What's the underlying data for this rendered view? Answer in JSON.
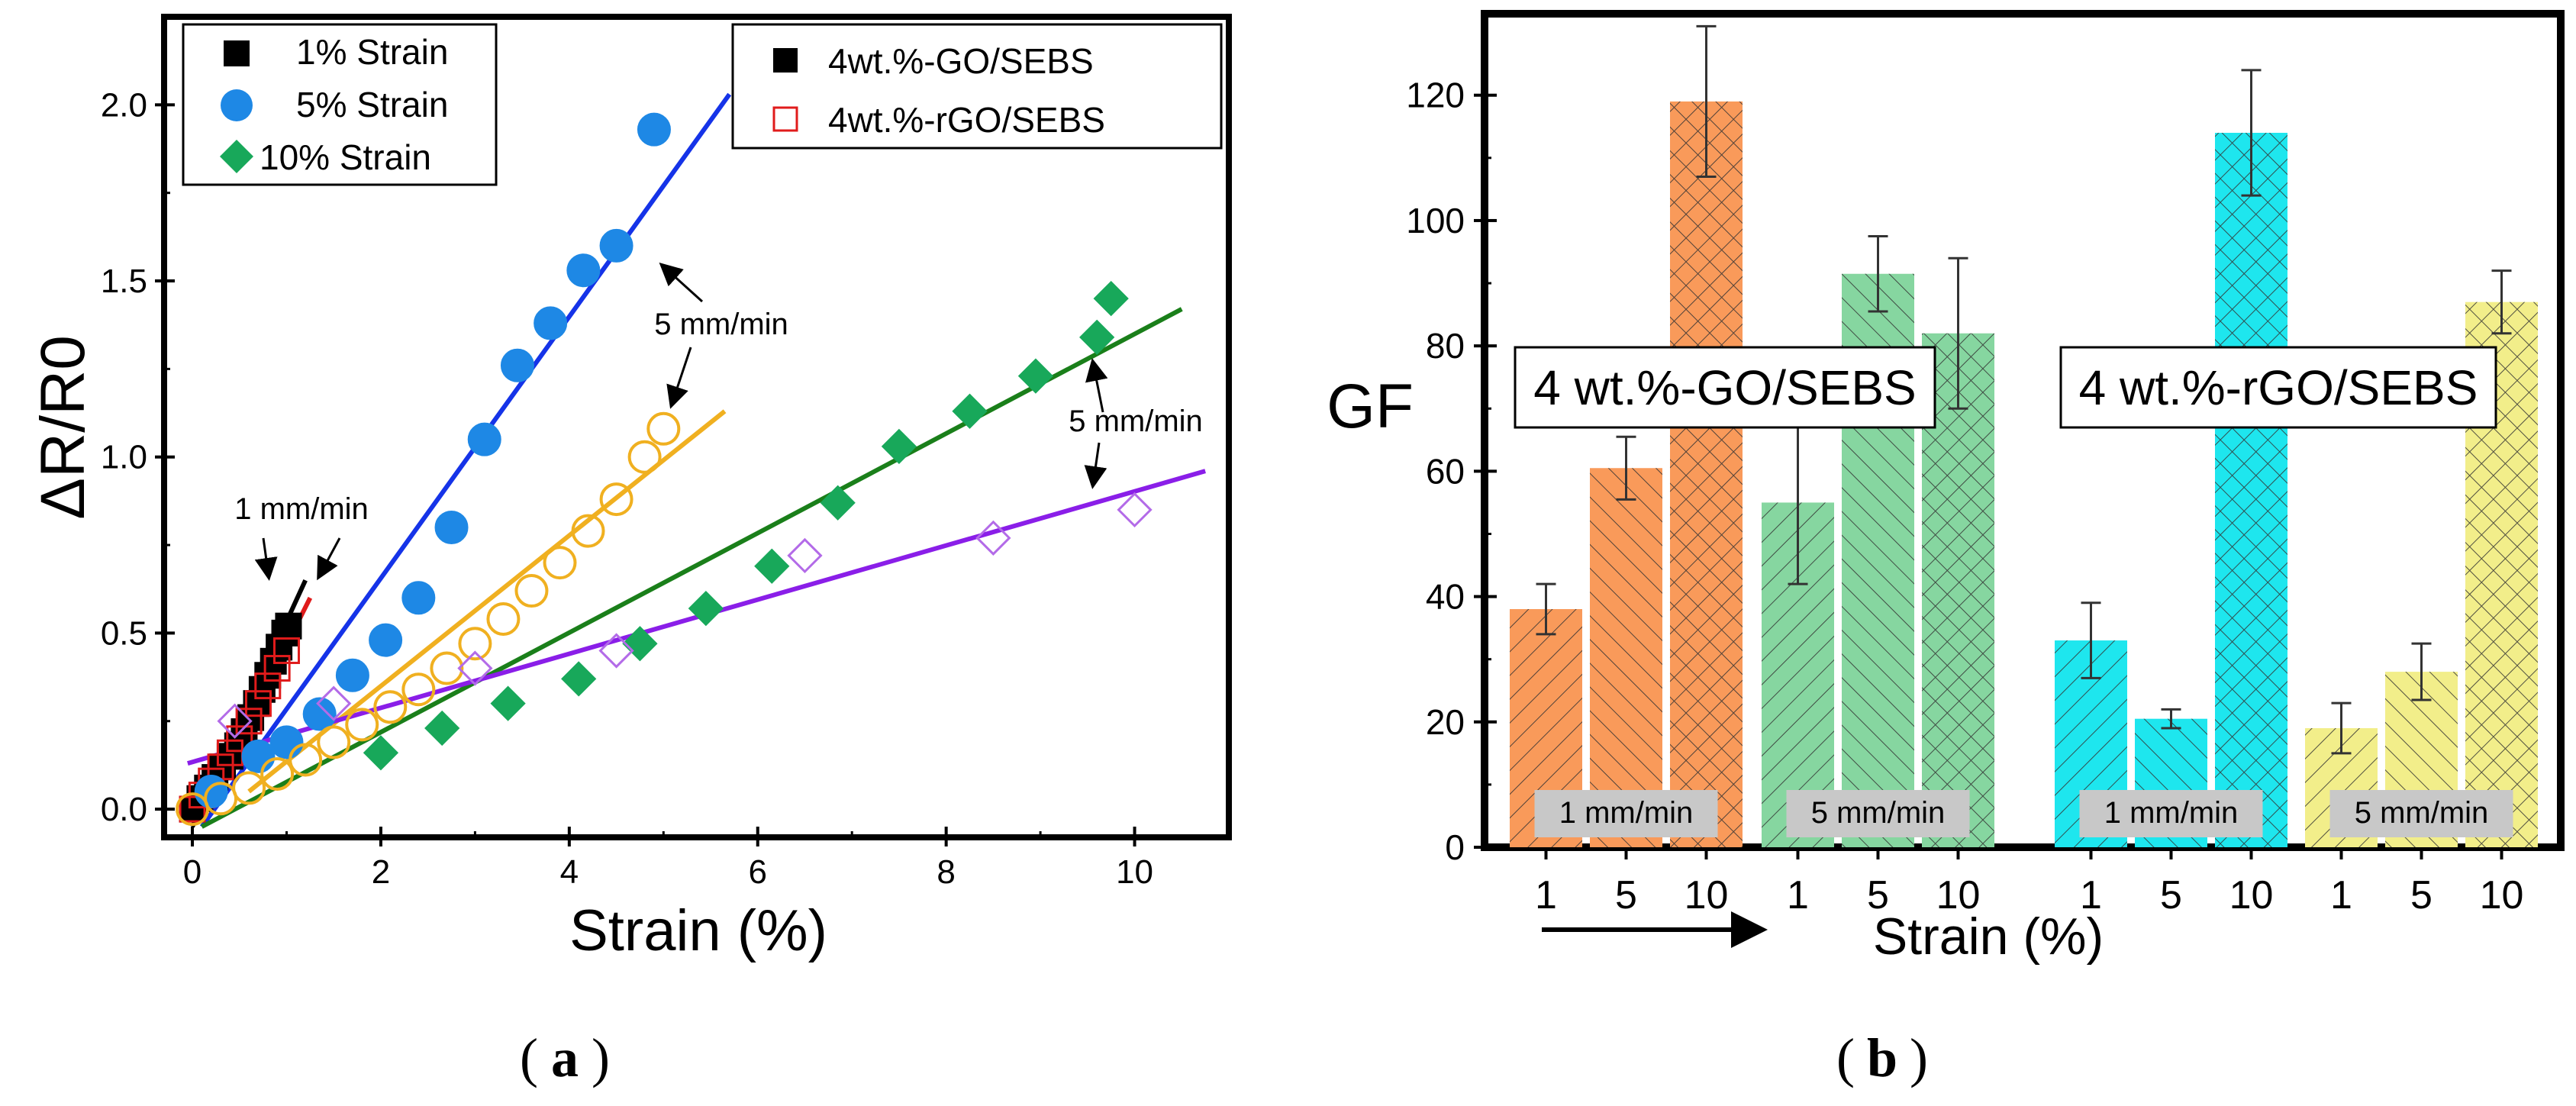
{
  "chart_data": [
    {
      "panel": "(a)",
      "type": "scatter",
      "xlabel": "Strain (%)",
      "ylabel": "ΔR/R0",
      "xlim": [
        -0.3,
        11.0
      ],
      "ylim": [
        -0.08,
        2.25
      ],
      "xticks": [
        0,
        2,
        4,
        6,
        8,
        10
      ],
      "yticks": [
        0.0,
        0.5,
        1.0,
        1.5,
        2.0
      ],
      "xtick_labels": [
        "0",
        "2",
        "4",
        "6",
        "8",
        "10"
      ],
      "ytick_labels": [
        "0.0",
        "0.5",
        "1.0",
        "1.5",
        "2.0"
      ],
      "legend_strain": [
        {
          "label": "1% Strain",
          "marker": "square",
          "color": "#000000"
        },
        {
          "label": "5% Strain",
          "marker": "circle",
          "color": "#1e88e5"
        },
        {
          "label": "10% Strain",
          "marker": "diamond",
          "color": "#18a85a"
        }
      ],
      "legend_material": [
        {
          "label": "4wt.%-GO/SEBS",
          "marker": "square-filled",
          "color": "#000000"
        },
        {
          "label": "4wt.%-rGO/SEBS",
          "marker": "square-open",
          "color": "#e01b1b"
        }
      ],
      "annotations": [
        "1 mm/min",
        "5 mm/min",
        "5 mm/min"
      ],
      "series": [
        {
          "name": "GO/SEBS 1% Strain",
          "marker": "square",
          "color": "#000000",
          "filled": true,
          "x": [
            0.0,
            0.08,
            0.16,
            0.24,
            0.32,
            0.4,
            0.48,
            0.55,
            0.62,
            0.68,
            0.74,
            0.8,
            0.86,
            0.92,
            0.98,
            1.02
          ],
          "y": [
            0.0,
            0.03,
            0.06,
            0.09,
            0.12,
            0.15,
            0.18,
            0.22,
            0.26,
            0.3,
            0.34,
            0.38,
            0.42,
            0.46,
            0.5,
            0.52
          ]
        },
        {
          "name": "rGO/SEBS 1% Strain",
          "marker": "square",
          "color": "#e01b1b",
          "filled": false,
          "x": [
            0.0,
            0.1,
            0.2,
            0.3,
            0.4,
            0.5,
            0.6,
            0.7,
            0.8,
            0.9,
            1.0
          ],
          "y": [
            0.0,
            0.04,
            0.08,
            0.12,
            0.16,
            0.2,
            0.25,
            0.3,
            0.35,
            0.4,
            0.45
          ]
        },
        {
          "name": "GO/SEBS 5% Strain",
          "marker": "circle",
          "color": "#1e88e5",
          "filled": true,
          "x": [
            0.2,
            0.7,
            1.0,
            1.35,
            1.7,
            2.05,
            2.4,
            2.75,
            3.1,
            3.45,
            3.8,
            4.15,
            4.5,
            4.9
          ],
          "y": [
            0.05,
            0.15,
            0.19,
            0.27,
            0.38,
            0.48,
            0.6,
            0.8,
            1.05,
            1.26,
            1.38,
            1.53,
            1.6,
            1.93
          ]
        },
        {
          "name": "rGO/SEBS 5% Strain",
          "marker": "circle",
          "color": "#f0b020",
          "filled": false,
          "x": [
            0.0,
            0.3,
            0.6,
            0.9,
            1.2,
            1.5,
            1.8,
            2.1,
            2.4,
            2.7,
            3.0,
            3.3,
            3.6,
            3.9,
            4.2,
            4.5,
            4.8,
            5.0
          ],
          "y": [
            0.0,
            0.03,
            0.06,
            0.1,
            0.14,
            0.19,
            0.24,
            0.29,
            0.34,
            0.4,
            0.47,
            0.54,
            0.62,
            0.7,
            0.79,
            0.88,
            1.0,
            1.08
          ]
        },
        {
          "name": "GO/SEBS 10% Strain",
          "marker": "diamond",
          "color": "#18a85a",
          "filled": true,
          "x": [
            2.0,
            2.65,
            3.35,
            4.1,
            4.75,
            5.45,
            6.15,
            6.85,
            7.5,
            8.25,
            8.95,
            9.6,
            9.75
          ],
          "y": [
            0.16,
            0.23,
            0.3,
            0.37,
            0.47,
            0.57,
            0.69,
            0.87,
            1.03,
            1.13,
            1.23,
            1.34,
            1.45
          ]
        },
        {
          "name": "rGO/SEBS 10% Strain",
          "marker": "diamond",
          "color": "#b36be8",
          "filled": false,
          "x": [
            0.45,
            1.5,
            3.0,
            4.5,
            6.5,
            8.5,
            10.0
          ],
          "y": [
            0.25,
            0.3,
            0.4,
            0.45,
            0.72,
            0.77,
            0.85
          ]
        }
      ],
      "fit_lines": [
        {
          "name": "GO 1% fit",
          "color": "#000000",
          "x": [
            0.0,
            1.2
          ],
          "y": [
            -0.05,
            0.65
          ]
        },
        {
          "name": "rGO 1% fit",
          "color": "#e01b1b",
          "x": [
            0.05,
            1.25
          ],
          "y": [
            -0.04,
            0.6
          ]
        },
        {
          "name": "GO 5% fit",
          "color": "#1533e8",
          "x": [
            0.1,
            5.7
          ],
          "y": [
            -0.05,
            2.03
          ]
        },
        {
          "name": "rGO 5% fit",
          "color": "#f0b020",
          "x": [
            0.6,
            5.65
          ],
          "y": [
            0.05,
            1.13
          ]
        },
        {
          "name": "GO 10% fit",
          "color": "#1a7f1a",
          "x": [
            0.1,
            10.5
          ],
          "y": [
            -0.05,
            1.42
          ]
        },
        {
          "name": "rGO 10% fit",
          "color": "#8a1ee8",
          "x": [
            -0.05,
            10.75
          ],
          "y": [
            0.13,
            0.96
          ]
        }
      ]
    },
    {
      "panel": "(b)",
      "type": "bar",
      "ylabel": "GF",
      "xlabel": "Strain (%)",
      "ylim": [
        0,
        133
      ],
      "yticks": [
        0,
        20,
        40,
        60,
        80,
        100,
        120
      ],
      "ytick_labels": [
        "0",
        "20",
        "40",
        "60",
        "80",
        "100",
        "120"
      ],
      "category_labels": [
        "1",
        "5",
        "10",
        "1",
        "5",
        "10",
        "1",
        "5",
        "10",
        "1",
        "5",
        "10"
      ],
      "group_labels": [
        "4 wt.%-GO/SEBS",
        "4 wt.%-rGO/SEBS"
      ],
      "speed_labels": [
        "1 mm/min",
        "5 mm/min",
        "1 mm/min",
        "5 mm/min"
      ],
      "groups": [
        {
          "material": "4 wt.%-GO/SEBS",
          "speed": "1 mm/min",
          "color": "#f99a5a",
          "strains": [
            "1",
            "5",
            "10"
          ],
          "values": [
            38,
            60.5,
            119
          ],
          "errors": [
            4,
            5,
            12
          ]
        },
        {
          "material": "4 wt.%-GO/SEBS",
          "speed": "5 mm/min",
          "color": "#86d6a0",
          "strains": [
            "1",
            "5",
            "10"
          ],
          "values": [
            55,
            91.5,
            82
          ],
          "errors": [
            13,
            6,
            12
          ]
        },
        {
          "material": "4 wt.%-rGO/SEBS",
          "speed": "1 mm/min",
          "color": "#1ee6ee",
          "strains": [
            "1",
            "5",
            "10"
          ],
          "values": [
            33,
            20.5,
            114
          ],
          "errors": [
            6,
            1.5,
            10
          ]
        },
        {
          "material": "4 wt.%-rGO/SEBS",
          "speed": "5 mm/min",
          "color": "#f2ee8a",
          "strains": [
            "1",
            "5",
            "10"
          ],
          "values": [
            19,
            28,
            87
          ],
          "errors": [
            4,
            4.5,
            5
          ]
        }
      ]
    }
  ],
  "captions": {
    "a_letter": "a",
    "b_letter": "b"
  }
}
